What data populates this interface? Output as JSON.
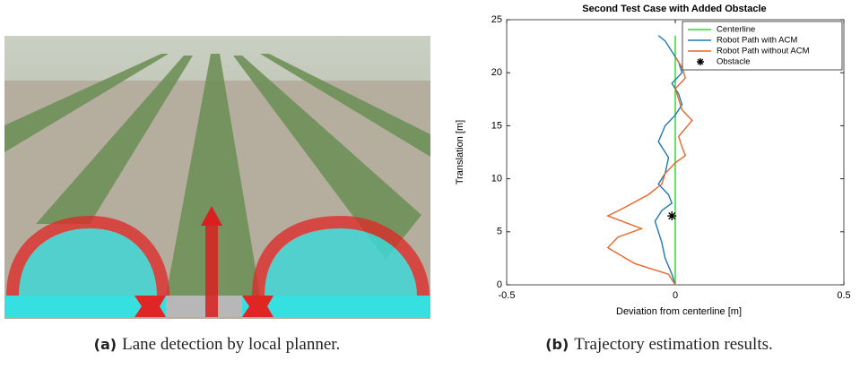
{
  "chart_data": {
    "type": "line",
    "title": "Second Test Case with Added Obstacle",
    "xlabel": "Deviation from centerline [m]",
    "ylabel": "Translation [m]",
    "xlim": [
      -0.5,
      0.5
    ],
    "ylim": [
      0,
      25
    ],
    "xticks": [
      -0.5,
      0,
      0.5
    ],
    "yticks": [
      0,
      5,
      10,
      15,
      20,
      25
    ],
    "legend": "upper right",
    "series": [
      {
        "name": "Centerline",
        "color": "#22dd22",
        "mode": "line",
        "x": [
          0,
          0
        ],
        "y": [
          0,
          23.5
        ]
      },
      {
        "name": "Robot Path with ACM",
        "color": "#1f77b4",
        "mode": "line",
        "x": [
          0,
          -0.01,
          -0.03,
          -0.04,
          -0.05,
          -0.06,
          -0.04,
          -0.01,
          -0.02,
          -0.05,
          -0.03,
          -0.02,
          -0.05,
          -0.03,
          0,
          0.02,
          0.01,
          -0.01,
          0.02,
          0.01,
          -0.01,
          -0.03,
          -0.05
        ],
        "y": [
          0,
          1,
          2.5,
          4,
          5,
          6,
          7,
          7.7,
          8.5,
          9.5,
          10.5,
          12,
          13.5,
          15,
          16,
          17,
          18,
          19,
          20,
          21,
          22,
          23,
          23.5
        ]
      },
      {
        "name": "Robot Path without ACM",
        "color": "#e8652a",
        "mode": "line",
        "x": [
          0,
          -0.02,
          -0.12,
          -0.2,
          -0.17,
          -0.1,
          -0.2,
          -0.15,
          -0.08,
          -0.04,
          -0.03,
          0,
          0.03,
          0.02,
          0.01,
          0.05,
          0.02,
          0.01,
          0,
          0.03,
          0.02,
          0
        ],
        "y": [
          0,
          1,
          2,
          3.5,
          4.5,
          5.3,
          6.5,
          7.3,
          8.5,
          9.5,
          10.5,
          11.5,
          12.2,
          13,
          14,
          15.5,
          16.5,
          17.5,
          18.5,
          19.5,
          20.5,
          21.5
        ]
      },
      {
        "name": "Obstacle",
        "color": "#000000",
        "mode": "marker",
        "marker": "*",
        "x": [
          -0.01
        ],
        "y": [
          6.5
        ]
      }
    ]
  },
  "captions": [
    {
      "label": "(a)",
      "text": "Lane detection by local planner."
    },
    {
      "label": "(b)",
      "text": "Trajectory estimation results."
    }
  ]
}
